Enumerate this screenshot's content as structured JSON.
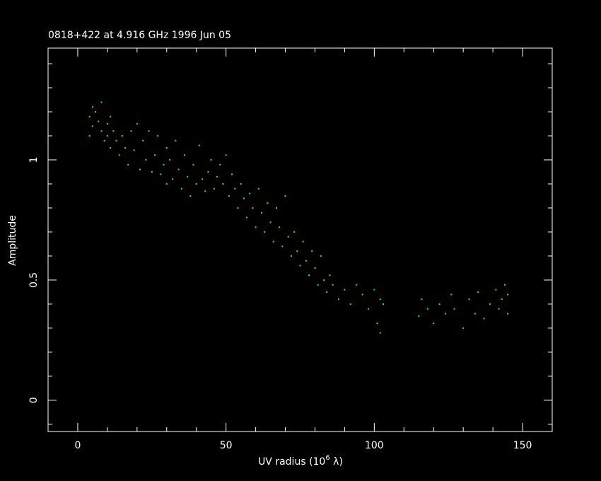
{
  "chart_data": {
    "type": "scatter",
    "title": "0818+422 at 4.916 GHz 1996 Jun 05",
    "xlabel": {
      "text": "UV radius  (10",
      "sup": "6",
      "after": " λ)"
    },
    "ylabel": "Amplitude",
    "xlim": [
      -10,
      160
    ],
    "ylim": [
      -0.13,
      1.465
    ],
    "xticks": [
      0,
      50,
      100,
      150
    ],
    "yticks": [
      0,
      0.5,
      1
    ],
    "xminor_ticks": [
      -10,
      10,
      20,
      30,
      40,
      60,
      70,
      80,
      90,
      110,
      120,
      130,
      140,
      160
    ],
    "yminor_ticks": [
      -0.1,
      0.1,
      0.2,
      0.3,
      0.4,
      0.6,
      0.7,
      0.8,
      0.9,
      1.1,
      1.2,
      1.3,
      1.4
    ],
    "color": "#1ee890",
    "x": [
      4,
      4,
      5,
      5,
      6,
      7,
      8,
      8,
      9,
      10,
      10,
      11,
      11,
      12,
      13,
      14,
      15,
      16,
      17,
      18,
      19,
      20,
      21,
      22,
      23,
      24,
      25,
      26,
      27,
      28,
      29,
      30,
      30,
      31,
      32,
      33,
      34,
      35,
      36,
      37,
      38,
      39,
      40,
      41,
      42,
      43,
      44,
      45,
      46,
      47,
      48,
      49,
      50,
      51,
      52,
      53,
      54,
      55,
      56,
      57,
      58,
      59,
      60,
      61,
      62,
      63,
      64,
      65,
      66,
      67,
      68,
      69,
      70,
      71,
      72,
      73,
      74,
      75,
      76,
      77,
      78,
      79,
      80,
      81,
      82,
      83,
      84,
      85,
      86,
      88,
      90,
      92,
      94,
      96,
      98,
      100,
      101,
      102,
      102,
      103,
      115,
      116,
      118,
      120,
      122,
      124,
      126,
      127,
      130,
      132,
      134,
      135,
      137,
      139,
      141,
      142,
      143,
      144,
      145,
      145
    ],
    "values": [
      1.18,
      1.1,
      1.22,
      1.14,
      1.2,
      1.16,
      1.12,
      1.24,
      1.08,
      1.15,
      1.1,
      1.05,
      1.18,
      1.12,
      1.08,
      1.02,
      1.1,
      1.05,
      0.98,
      1.12,
      1.04,
      1.15,
      0.96,
      1.08,
      1.0,
      1.12,
      0.95,
      1.02,
      1.1,
      0.94,
      0.98,
      1.05,
      0.9,
      1.0,
      0.92,
      1.08,
      0.96,
      0.88,
      1.02,
      0.93,
      0.85,
      0.98,
      0.9,
      1.06,
      0.92,
      0.87,
      0.95,
      1.0,
      0.88,
      0.93,
      0.98,
      0.9,
      1.02,
      0.85,
      0.94,
      0.88,
      0.8,
      0.9,
      0.84,
      0.76,
      0.86,
      0.8,
      0.72,
      0.88,
      0.78,
      0.7,
      0.82,
      0.74,
      0.66,
      0.8,
      0.72,
      0.64,
      0.85,
      0.68,
      0.6,
      0.7,
      0.62,
      0.56,
      0.66,
      0.58,
      0.52,
      0.62,
      0.55,
      0.48,
      0.6,
      0.5,
      0.45,
      0.52,
      0.48,
      0.42,
      0.46,
      0.4,
      0.48,
      0.44,
      0.38,
      0.46,
      0.32,
      0.28,
      0.42,
      0.4,
      0.35,
      0.42,
      0.38,
      0.32,
      0.4,
      0.36,
      0.44,
      0.38,
      0.3,
      0.42,
      0.36,
      0.45,
      0.34,
      0.4,
      0.46,
      0.38,
      0.42,
      0.48,
      0.36,
      0.44
    ]
  }
}
